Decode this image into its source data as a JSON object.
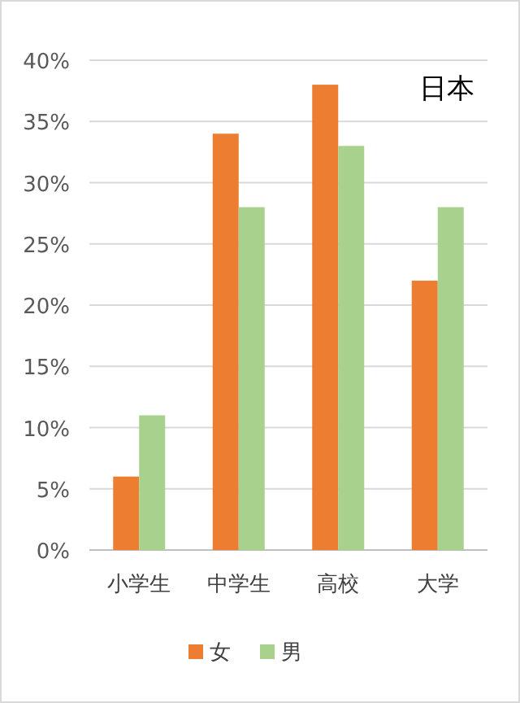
{
  "chart_data": {
    "type": "bar",
    "title": "日本",
    "categories": [
      "小学生",
      "中学生",
      "高校",
      "大学"
    ],
    "series": [
      {
        "name": "女",
        "color": "#ed7d31",
        "values": [
          6,
          34,
          38,
          22
        ]
      },
      {
        "name": "男",
        "color": "#a9d18e",
        "values": [
          11,
          28,
          33,
          28
        ]
      }
    ],
    "ylim": [
      0,
      40
    ],
    "yticks": [
      {
        "value": 0,
        "label": "0%"
      },
      {
        "value": 5,
        "label": "5%"
      },
      {
        "value": 10,
        "label": "10%"
      },
      {
        "value": 15,
        "label": "15%"
      },
      {
        "value": 20,
        "label": "20%"
      },
      {
        "value": 25,
        "label": "25%"
      },
      {
        "value": 30,
        "label": "30%"
      },
      {
        "value": 35,
        "label": "35%"
      },
      {
        "value": 40,
        "label": "40%"
      }
    ],
    "grid": true,
    "legend": "bottom"
  }
}
